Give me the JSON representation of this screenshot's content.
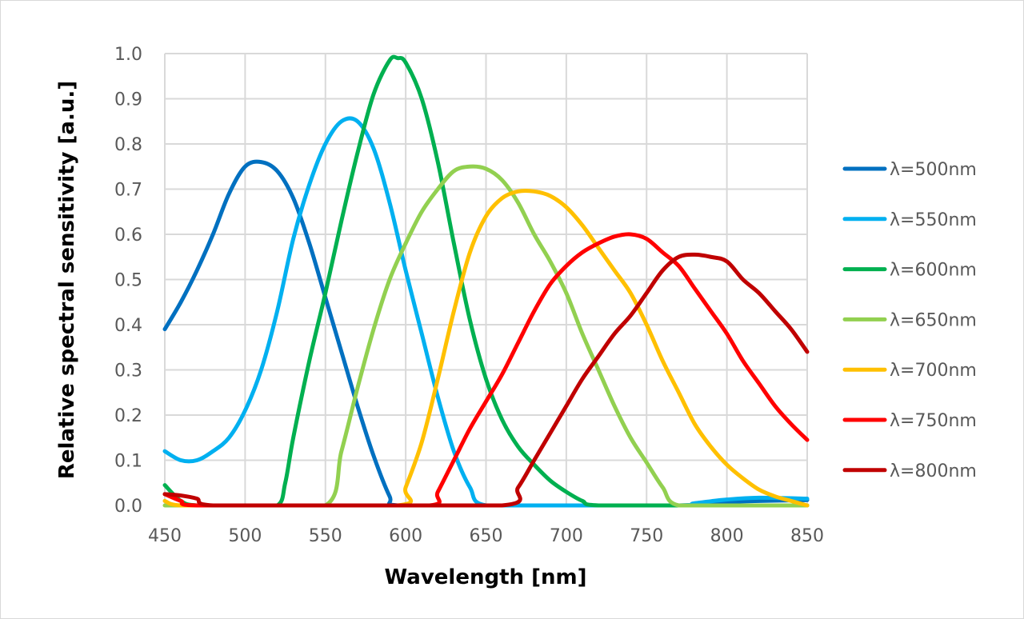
{
  "chart_data": {
    "type": "line",
    "title": "",
    "xlabel": "Wavelength [nm]",
    "ylabel": "Relative spectral sensitivity [a.u.]",
    "xlim": [
      450,
      850
    ],
    "ylim": [
      0,
      1.0
    ],
    "xticks": [
      "450",
      "500",
      "550",
      "600",
      "650",
      "700",
      "750",
      "800",
      "850"
    ],
    "yticks": [
      "0.0",
      "0.1",
      "0.2",
      "0.3",
      "0.4",
      "0.5",
      "0.6",
      "0.7",
      "0.8",
      "0.9",
      "1.0"
    ],
    "grid": true,
    "legend_position": "right",
    "series": [
      {
        "name": "λ=500nm",
        "color": "#0070C0",
        "points": [
          [
            450,
            0.39
          ],
          [
            460,
            0.45
          ],
          [
            470,
            0.52
          ],
          [
            480,
            0.6
          ],
          [
            490,
            0.69
          ],
          [
            500,
            0.75
          ],
          [
            510,
            0.76
          ],
          [
            520,
            0.74
          ],
          [
            530,
            0.68
          ],
          [
            540,
            0.58
          ],
          [
            550,
            0.46
          ],
          [
            560,
            0.34
          ],
          [
            570,
            0.22
          ],
          [
            580,
            0.11
          ],
          [
            590,
            0.02
          ],
          [
            595,
            0
          ],
          [
            650,
            0
          ],
          [
            700,
            0
          ],
          [
            770,
            0
          ],
          [
            800,
            0.008
          ],
          [
            850,
            0.012
          ]
        ]
      },
      {
        "name": "λ=550nm",
        "color": "#00B0F0",
        "points": [
          [
            450,
            0.12
          ],
          [
            460,
            0.1
          ],
          [
            470,
            0.1
          ],
          [
            480,
            0.12
          ],
          [
            490,
            0.15
          ],
          [
            500,
            0.21
          ],
          [
            510,
            0.3
          ],
          [
            520,
            0.43
          ],
          [
            530,
            0.59
          ],
          [
            540,
            0.71
          ],
          [
            550,
            0.8
          ],
          [
            560,
            0.85
          ],
          [
            570,
            0.85
          ],
          [
            580,
            0.79
          ],
          [
            590,
            0.67
          ],
          [
            600,
            0.52
          ],
          [
            610,
            0.38
          ],
          [
            620,
            0.24
          ],
          [
            630,
            0.12
          ],
          [
            640,
            0.04
          ],
          [
            650,
            0
          ],
          [
            700,
            0
          ],
          [
            770,
            0
          ],
          [
            780,
            0.005
          ],
          [
            800,
            0.013
          ],
          [
            820,
            0.017
          ],
          [
            850,
            0.015
          ]
        ]
      },
      {
        "name": "λ=600nm",
        "color": "#00B050",
        "points": [
          [
            450,
            0.045
          ],
          [
            460,
            0.01
          ],
          [
            470,
            0
          ],
          [
            500,
            0
          ],
          [
            520,
            0
          ],
          [
            525,
            0.05
          ],
          [
            530,
            0.15
          ],
          [
            540,
            0.32
          ],
          [
            550,
            0.47
          ],
          [
            560,
            0.63
          ],
          [
            570,
            0.78
          ],
          [
            580,
            0.91
          ],
          [
            590,
            0.985
          ],
          [
            595,
            0.99
          ],
          [
            600,
            0.98
          ],
          [
            610,
            0.9
          ],
          [
            620,
            0.76
          ],
          [
            630,
            0.58
          ],
          [
            640,
            0.41
          ],
          [
            650,
            0.28
          ],
          [
            660,
            0.19
          ],
          [
            670,
            0.13
          ],
          [
            680,
            0.09
          ],
          [
            690,
            0.055
          ],
          [
            700,
            0.03
          ],
          [
            710,
            0.01
          ],
          [
            720,
            0
          ],
          [
            780,
            0
          ],
          [
            850,
            0
          ]
        ]
      },
      {
        "name": "λ=650nm",
        "color": "#92D050",
        "points": [
          [
            450,
            0
          ],
          [
            500,
            0
          ],
          [
            550,
            0
          ],
          [
            560,
            0.12
          ],
          [
            570,
            0.26
          ],
          [
            580,
            0.39
          ],
          [
            590,
            0.5
          ],
          [
            600,
            0.58
          ],
          [
            610,
            0.65
          ],
          [
            620,
            0.7
          ],
          [
            630,
            0.74
          ],
          [
            640,
            0.75
          ],
          [
            650,
            0.745
          ],
          [
            660,
            0.72
          ],
          [
            670,
            0.67
          ],
          [
            680,
            0.6
          ],
          [
            690,
            0.54
          ],
          [
            700,
            0.47
          ],
          [
            710,
            0.38
          ],
          [
            720,
            0.3
          ],
          [
            730,
            0.22
          ],
          [
            740,
            0.15
          ],
          [
            750,
            0.095
          ],
          [
            760,
            0.04
          ],
          [
            770,
            0
          ],
          [
            810,
            0
          ],
          [
            850,
            0
          ]
        ]
      },
      {
        "name": "λ=700nm",
        "color": "#FFC000",
        "points": [
          [
            450,
            0.01
          ],
          [
            460,
            0
          ],
          [
            500,
            0
          ],
          [
            595,
            0
          ],
          [
            600,
            0.04
          ],
          [
            610,
            0.14
          ],
          [
            620,
            0.28
          ],
          [
            630,
            0.43
          ],
          [
            640,
            0.56
          ],
          [
            650,
            0.64
          ],
          [
            660,
            0.68
          ],
          [
            670,
            0.695
          ],
          [
            680,
            0.695
          ],
          [
            690,
            0.685
          ],
          [
            700,
            0.66
          ],
          [
            710,
            0.62
          ],
          [
            720,
            0.57
          ],
          [
            730,
            0.52
          ],
          [
            740,
            0.47
          ],
          [
            750,
            0.4
          ],
          [
            760,
            0.32
          ],
          [
            770,
            0.25
          ],
          [
            780,
            0.18
          ],
          [
            790,
            0.13
          ],
          [
            800,
            0.09
          ],
          [
            810,
            0.06
          ],
          [
            820,
            0.035
          ],
          [
            830,
            0.02
          ],
          [
            840,
            0.01
          ],
          [
            850,
            0
          ]
        ]
      },
      {
        "name": "λ=750nm",
        "color": "#FF0000",
        "points": [
          [
            450,
            0.025
          ],
          [
            460,
            0.01
          ],
          [
            470,
            0
          ],
          [
            550,
            0
          ],
          [
            615,
            0
          ],
          [
            620,
            0.03
          ],
          [
            630,
            0.1
          ],
          [
            640,
            0.17
          ],
          [
            650,
            0.23
          ],
          [
            660,
            0.29
          ],
          [
            670,
            0.36
          ],
          [
            680,
            0.43
          ],
          [
            690,
            0.49
          ],
          [
            700,
            0.53
          ],
          [
            710,
            0.56
          ],
          [
            720,
            0.58
          ],
          [
            730,
            0.595
          ],
          [
            740,
            0.6
          ],
          [
            750,
            0.59
          ],
          [
            760,
            0.56
          ],
          [
            770,
            0.53
          ],
          [
            780,
            0.48
          ],
          [
            790,
            0.43
          ],
          [
            800,
            0.38
          ],
          [
            810,
            0.32
          ],
          [
            820,
            0.27
          ],
          [
            830,
            0.22
          ],
          [
            840,
            0.18
          ],
          [
            850,
            0.145
          ]
        ]
      },
      {
        "name": "λ=800nm",
        "color": "#C00000",
        "points": [
          [
            450,
            0.025
          ],
          [
            460,
            0.022
          ],
          [
            470,
            0.015
          ],
          [
            480,
            0
          ],
          [
            550,
            0
          ],
          [
            660,
            0
          ],
          [
            670,
            0.04
          ],
          [
            680,
            0.1
          ],
          [
            690,
            0.16
          ],
          [
            700,
            0.22
          ],
          [
            710,
            0.28
          ],
          [
            720,
            0.33
          ],
          [
            730,
            0.38
          ],
          [
            740,
            0.42
          ],
          [
            750,
            0.47
          ],
          [
            760,
            0.52
          ],
          [
            770,
            0.55
          ],
          [
            780,
            0.555
          ],
          [
            790,
            0.55
          ],
          [
            800,
            0.54
          ],
          [
            810,
            0.5
          ],
          [
            820,
            0.47
          ],
          [
            830,
            0.43
          ],
          [
            840,
            0.39
          ],
          [
            850,
            0.34
          ]
        ]
      }
    ]
  }
}
